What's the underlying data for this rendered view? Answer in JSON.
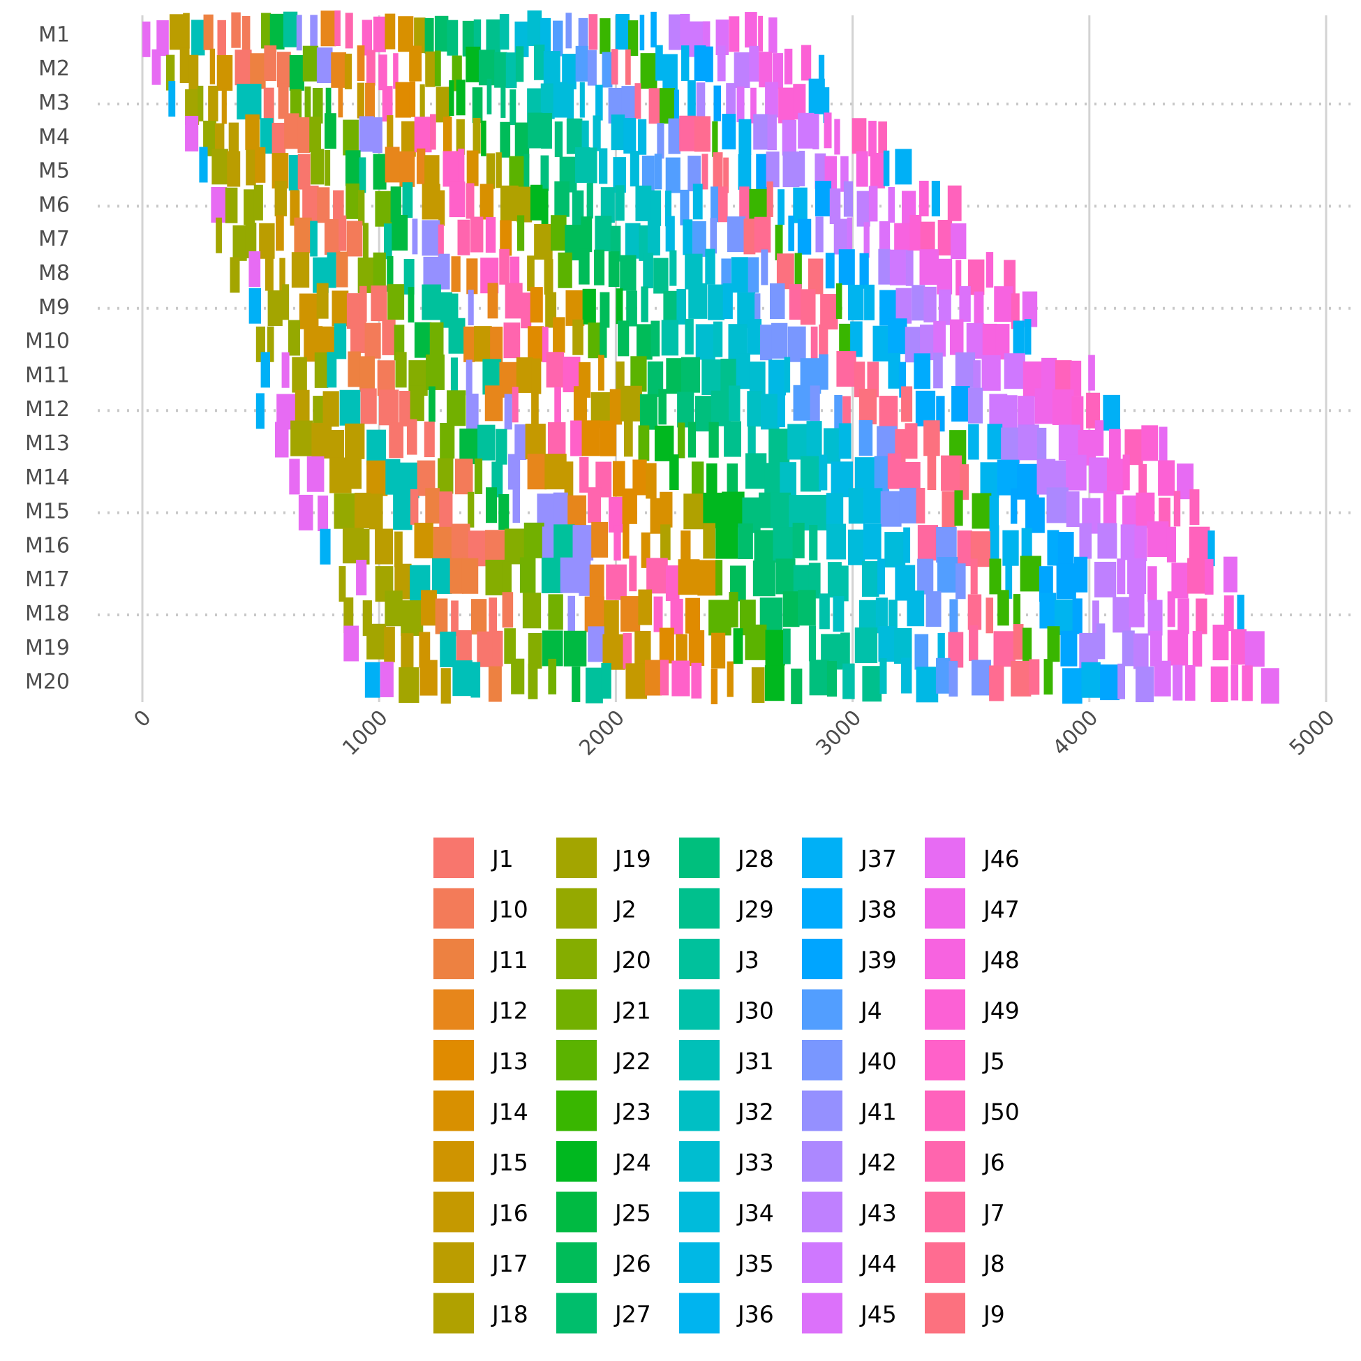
{
  "chart_data": {
    "type": "gantt",
    "title": "",
    "xlabel": "",
    "ylabel": "",
    "xlim": [
      0,
      5000
    ],
    "x_ticks": [
      0,
      1000,
      2000,
      3000,
      4000,
      5000
    ],
    "x_tick_labels": [
      "0",
      "1000",
      "2000",
      "3000",
      "4000",
      "5000"
    ],
    "machines": [
      "M1",
      "M2",
      "M3",
      "M4",
      "M5",
      "M6",
      "M7",
      "M8",
      "M9",
      "M10",
      "M11",
      "M12",
      "M13",
      "M14",
      "M15",
      "M16",
      "M17",
      "M18",
      "M19",
      "M20"
    ],
    "machine_start": [
      0,
      40,
      110,
      180,
      240,
      290,
      310,
      370,
      450,
      480,
      500,
      480,
      560,
      620,
      660,
      750,
      830,
      850,
      850,
      940
    ],
    "machine_end": [
      2700,
      2900,
      2910,
      3180,
      3250,
      3460,
      3480,
      3690,
      3780,
      3800,
      4060,
      4150,
      4390,
      4440,
      4510,
      4570,
      4630,
      4700,
      4740,
      4810
    ],
    "jobs": [
      "J1",
      "J10",
      "J11",
      "J12",
      "J13",
      "J14",
      "J15",
      "J16",
      "J17",
      "J18",
      "J19",
      "J2",
      "J20",
      "J21",
      "J22",
      "J23",
      "J24",
      "J25",
      "J26",
      "J27",
      "J28",
      "J29",
      "J3",
      "J30",
      "J31",
      "J32",
      "J33",
      "J34",
      "J35",
      "J36",
      "J37",
      "J38",
      "J39",
      "J4",
      "J40",
      "J41",
      "J42",
      "J43",
      "J44",
      "J45",
      "J46",
      "J47",
      "J48",
      "J49",
      "J5",
      "J50",
      "J6",
      "J7",
      "J8",
      "J9"
    ],
    "legend_position": "bottom",
    "grid": true
  },
  "colors": {
    "J1": "#F8766D",
    "J10": "#F37B59",
    "J11": "#ED8141",
    "J12": "#E7861B",
    "J13": "#E08B00",
    "J14": "#D89000",
    "J15": "#CF9400",
    "J16": "#C59900",
    "J17": "#BB9D00",
    "J18": "#B0A100",
    "J19": "#A3A500",
    "J2": "#95A900",
    "J20": "#85AD00",
    "J21": "#72B000",
    "J22": "#5BB300",
    "J23": "#39B600",
    "J24": "#00B81F",
    "J25": "#00BA42",
    "J26": "#00BC59",
    "J27": "#00BE6C",
    "J28": "#00BF7D",
    "J29": "#00C08D",
    "J3": "#00C19C",
    "J30": "#00C1AA",
    "J31": "#00C0B8",
    "J32": "#00BFC4",
    "J33": "#00BDD0",
    "J34": "#00BBDB",
    "J35": "#00B8E5",
    "J36": "#00B4EF",
    "J37": "#00B0F6",
    "J38": "#00ABFD",
    "J39": "#00A5FF",
    "J4": "#529EFF",
    "J40": "#7997FF",
    "J41": "#9590FF",
    "J42": "#AC88FF",
    "J43": "#BF80FF",
    "J44": "#CF78FF",
    "J45": "#DC71FA",
    "J46": "#E76BF3",
    "J47": "#F066EA",
    "J48": "#F763E0",
    "J49": "#FC61D5",
    "J5": "#FF61C9",
    "J50": "#FF62BC",
    "J6": "#FF65AE",
    "J7": "#FF689F",
    "J8": "#FF6C91",
    "J9": "#FC717F",
    "gridline": "#d3d3d3",
    "axis_text": "#4d4d4d"
  }
}
